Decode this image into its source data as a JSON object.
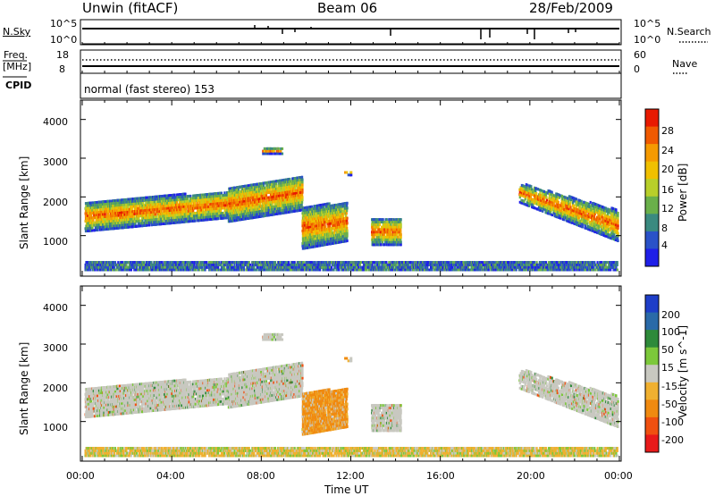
{
  "header": {
    "site": "Unwin (fitACF)",
    "beam": "Beam 06",
    "date": "28/Feb/2009"
  },
  "panels": {
    "nsky": {
      "left_label": "N.Sky",
      "left_top_tick": "10^5",
      "left_bottom_tick": "10^0",
      "right_top_tick": "10^5",
      "right_bottom_tick": "10^0",
      "right_label": "N.Search"
    },
    "freq": {
      "left_label_1": "Freq.",
      "left_label_2": "[MHz]",
      "left_top_tick": "18",
      "left_bottom_tick": "8",
      "right_top_tick": "60",
      "right_bottom_tick": "0",
      "right_label": "Nave"
    },
    "cpid": {
      "label": "CPID",
      "mode": "normal (fast stereo) 153"
    }
  },
  "chart_data": [
    {
      "type": "heatmap",
      "quantity": "Power",
      "ylabel": "Slant Range [km]",
      "colorbar_label": "Power [dB]",
      "y_ticks": [
        "1000",
        "2000",
        "3000",
        "4000"
      ],
      "colorbar_ticks": [
        "4",
        "8",
        "12",
        "16",
        "20",
        "24",
        "28"
      ],
      "colorbar_colors": [
        "#1f1fe8",
        "#2a52c8",
        "#3a8a80",
        "#6ab04a",
        "#b8cf2a",
        "#f0c000",
        "#f59a00",
        "#f05a00",
        "#e81a00"
      ]
    },
    {
      "type": "heatmap",
      "quantity": "Velocity",
      "ylabel": "Slant Range [km]",
      "colorbar_label": "Velocity [m s^-1]",
      "y_ticks": [
        "1000",
        "2000",
        "3000",
        "4000"
      ],
      "colorbar_ticks": [
        "200",
        "100",
        "50",
        "15",
        "-15",
        "-50",
        "-100",
        "-200"
      ],
      "colorbar_colors": [
        "#1e3ec8",
        "#2a6aa8",
        "#2e8a3a",
        "#7cc83a",
        "#c8c8c0",
        "#f0b030",
        "#f08a10",
        "#f05010",
        "#e81a1a"
      ]
    }
  ],
  "x_axis": {
    "label": "Time UT",
    "ticks": [
      "00:00",
      "04:00",
      "08:00",
      "12:00",
      "16:00",
      "20:00",
      "00:00"
    ]
  }
}
